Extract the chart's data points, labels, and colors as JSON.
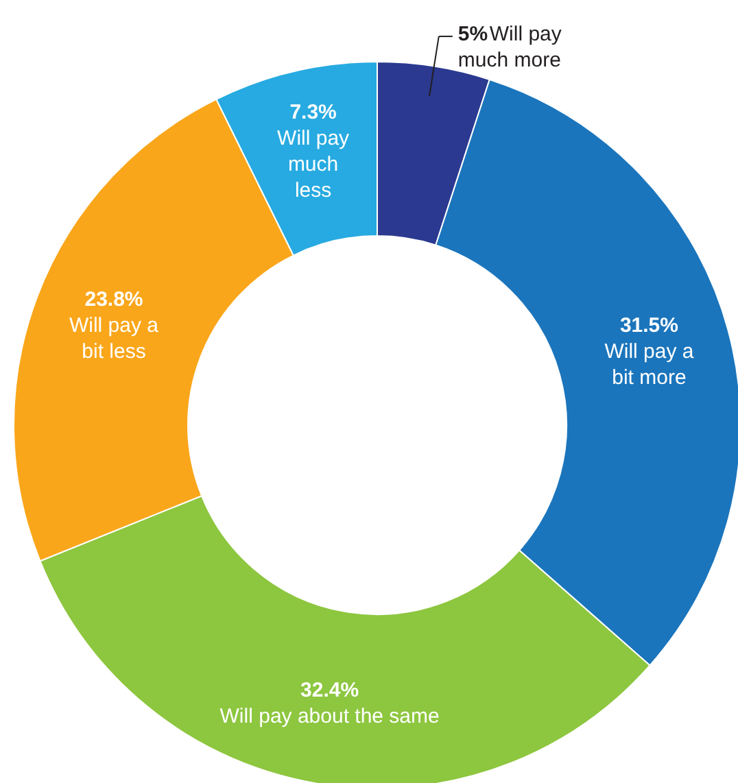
{
  "chart_data": {
    "type": "donut",
    "categories": [
      "Will pay much more",
      "Will pay a bit more",
      "Will pay about the same",
      "Will pay a bit less",
      "Will pay much less"
    ],
    "values": [
      5,
      31.5,
      32.4,
      23.8,
      7.3
    ],
    "value_labels": [
      "5%",
      "31.5%",
      "32.4%",
      "23.8%",
      "7.3%"
    ],
    "colors": [
      "#2b3990",
      "#1b75bc",
      "#8dc63f",
      "#faa61a",
      "#27aae1"
    ]
  }
}
